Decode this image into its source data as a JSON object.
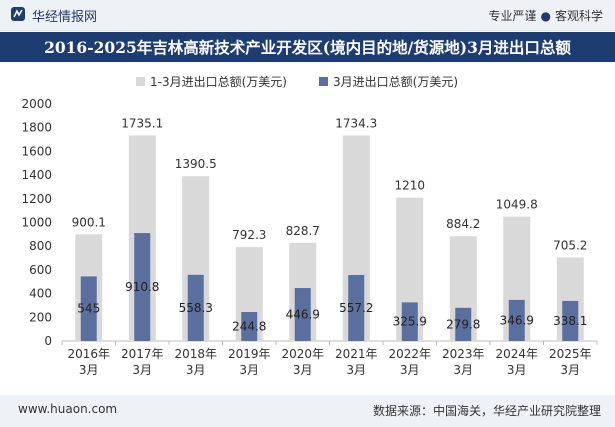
{
  "header": {
    "site_name": "华经情报网",
    "tagline_left": "专业严谨",
    "tagline_sep": "●",
    "tagline_right": "客观科学"
  },
  "footer": {
    "url": "www.huaon.com",
    "source": "数据来源：中国海关，华经产业研究院整理"
  },
  "colors": {
    "brand": "#1d3c72",
    "series_total": "#d9d9d9",
    "series_march": "#5b6f9e"
  },
  "chart_data": {
    "type": "bar",
    "title": "2016-2025年吉林高新技术产业开发区(境内目的地/货源地)3月进出口总额",
    "categories": [
      "2016年\n3月",
      "2017年\n3月",
      "2018年\n3月",
      "2019年\n3月",
      "2020年\n3月",
      "2021年\n3月",
      "2022年\n3月",
      "2023年\n3月",
      "2024年\n3月",
      "2025年\n3月"
    ],
    "series": [
      {
        "name": "1-3月进出口总额(万美元)",
        "values": [
          900.1,
          1735.1,
          1390.5,
          792.3,
          828.7,
          1734.3,
          1210,
          884.2,
          1049.8,
          705.2
        ],
        "color": "#d9d9d9"
      },
      {
        "name": "3月进出口总额(万美元)",
        "values": [
          545,
          910.8,
          558.3,
          244.8,
          446.9,
          557.2,
          325.9,
          279.8,
          346.9,
          338.1
        ],
        "color": "#5b6f9e"
      }
    ],
    "yticks": [
      0,
      200,
      400,
      600,
      800,
      1000,
      1200,
      1400,
      1600,
      1800,
      2000
    ],
    "ylim": [
      0,
      2000
    ],
    "xlabel": "",
    "ylabel": "",
    "legend": "top-center",
    "grid": false
  }
}
